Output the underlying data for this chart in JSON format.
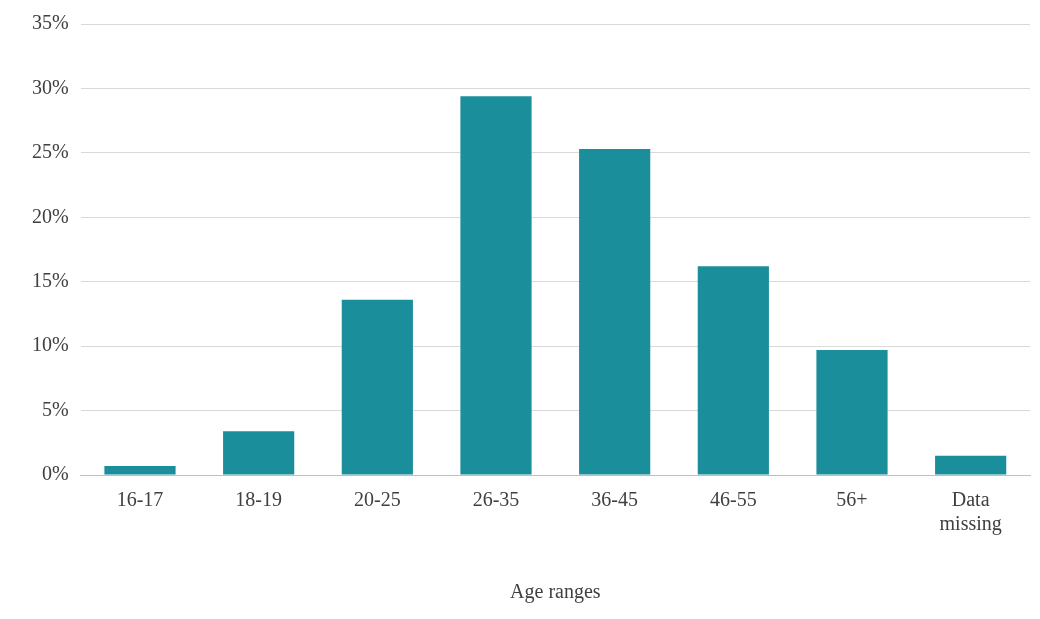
{
  "chart_data": {
    "type": "bar",
    "xlabel": "Age ranges",
    "categories": [
      "16-17",
      "18-19",
      "20-25",
      "26-35",
      "36-45",
      "46-55",
      "56+",
      "Data missing"
    ],
    "values": [
      0.7,
      3.4,
      13.6,
      29.4,
      25.3,
      16.2,
      9.7,
      1.5
    ],
    "color": "#1b8e9c",
    "ylim": [
      0,
      35
    ],
    "yticks": [
      {
        "value": 0,
        "label": "0%"
      },
      {
        "value": 5,
        "label": "5%"
      },
      {
        "value": 10,
        "label": "10%"
      },
      {
        "value": 15,
        "label": "15%"
      },
      {
        "value": 20,
        "label": "20%"
      },
      {
        "value": 25,
        "label": "25%"
      },
      {
        "value": 30,
        "label": "30%"
      },
      {
        "value": 35,
        "label": "35%"
      }
    ],
    "grid": "y",
    "legend": false
  }
}
